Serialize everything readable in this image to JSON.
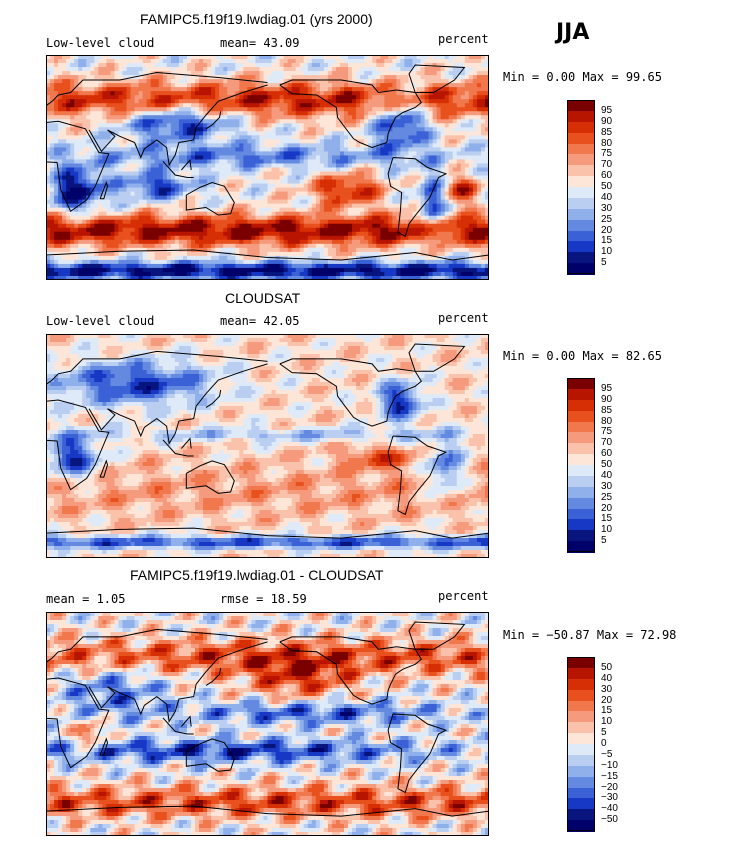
{
  "season": "JJA",
  "panels": [
    {
      "title": "FAMIPC5.f19f19.lwdiag.01 (yrs 2000)",
      "left_label": "Low-level cloud",
      "stat_text": "mean=  43.09",
      "unit": "percent",
      "minmax": "Min =   0.00 Max =  99.65",
      "field": "model"
    },
    {
      "title": "CLOUDSAT",
      "left_label": "Low-level cloud",
      "stat_text": "mean=  42.05",
      "unit": "percent",
      "minmax": "Min =   0.00 Max =  82.65",
      "field": "obs"
    },
    {
      "title": "FAMIPC5.f19f19.lwdiag.01 - CLOUDSAT",
      "left_label": "mean =   1.05",
      "stat_text": "rmse =  18.59",
      "unit": "percent",
      "minmax": "Min = −50.87 Max =  72.98",
      "field": "diff"
    }
  ],
  "colorbars": [
    {
      "labels": [
        "95",
        "90",
        "85",
        "80",
        "75",
        "70",
        "60",
        "50",
        "40",
        "30",
        "25",
        "20",
        "15",
        "10",
        "5"
      ],
      "colors": [
        "#7a0000",
        "#b81500",
        "#d72f05",
        "#e8501d",
        "#f0784c",
        "#f59a7c",
        "#fac2aa",
        "#fde6d8",
        "#dfeaf8",
        "#b9cef0",
        "#8fb0ea",
        "#6389e0",
        "#3a62d6",
        "#1738c4",
        "#08157e",
        "#00006b"
      ]
    },
    {
      "labels": [
        "95",
        "90",
        "85",
        "80",
        "75",
        "70",
        "60",
        "50",
        "40",
        "30",
        "25",
        "20",
        "15",
        "10",
        "5"
      ],
      "colors": [
        "#7a0000",
        "#b81500",
        "#d72f05",
        "#e8501d",
        "#f0784c",
        "#f59a7c",
        "#fac2aa",
        "#fde6d8",
        "#dfeaf8",
        "#b9cef0",
        "#8fb0ea",
        "#6389e0",
        "#3a62d6",
        "#1738c4",
        "#08157e",
        "#00006b"
      ]
    },
    {
      "labels": [
        "50",
        "40",
        "30",
        "20",
        "15",
        "10",
        "5",
        "0",
        "−5",
        "−10",
        "−15",
        "−20",
        "−30",
        "−40",
        "−50"
      ],
      "colors": [
        "#7a0000",
        "#b81500",
        "#d72f05",
        "#e8501d",
        "#f0784c",
        "#f59a7c",
        "#fac2aa",
        "#fde6d8",
        "#dfeaf8",
        "#b9cef0",
        "#8fb0ea",
        "#6389e0",
        "#3a62d6",
        "#1738c4",
        "#08157e",
        "#00006b"
      ]
    }
  ]
}
